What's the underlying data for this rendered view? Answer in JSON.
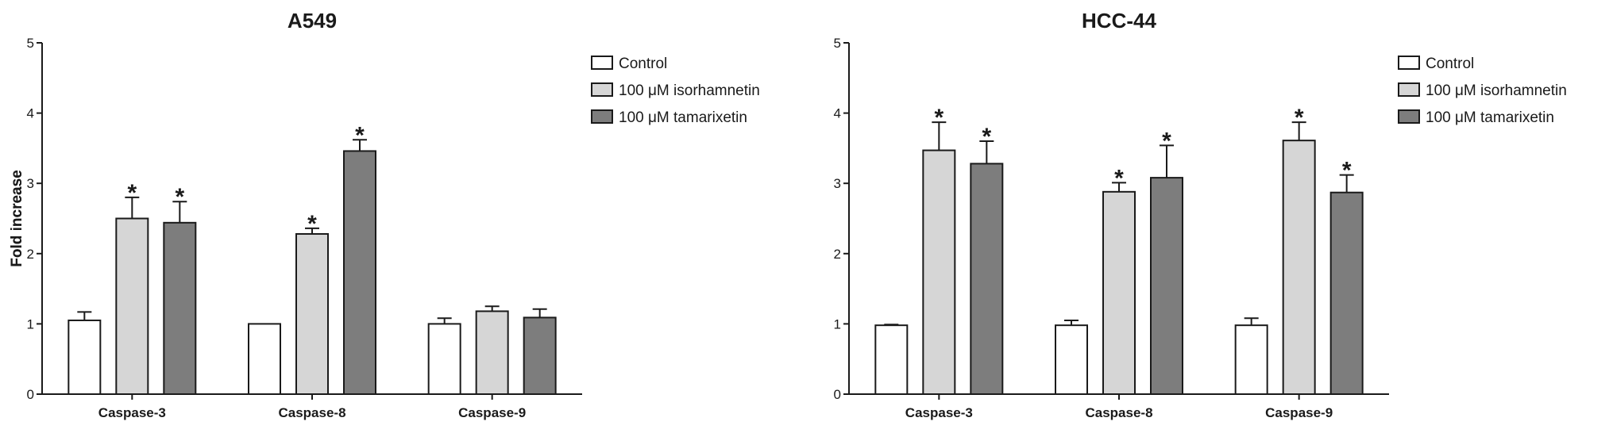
{
  "chart_data": [
    {
      "type": "bar",
      "title": "A549",
      "ylabel": "Fold increase",
      "xlabel": "",
      "ylim": [
        0,
        5
      ],
      "yticks": [
        "0",
        "1",
        "2",
        "3",
        "4",
        "5"
      ],
      "categories": [
        "Caspase-3",
        "Caspase-8",
        "Caspase-9"
      ],
      "legend_position": "right",
      "series": [
        {
          "name": "Control",
          "values": [
            1.05,
            1.0,
            1.0
          ],
          "errors": [
            0.12,
            0.0,
            0.08
          ],
          "significant": [
            false,
            false,
            false
          ],
          "color": "#ffffff"
        },
        {
          "name": "100 μM isorhamnetin",
          "values": [
            2.5,
            2.28,
            1.18
          ],
          "errors": [
            0.3,
            0.08,
            0.07
          ],
          "significant": [
            true,
            true,
            false
          ],
          "color": "#d6d6d6"
        },
        {
          "name": "100 μM tamarixetin",
          "values": [
            2.44,
            3.46,
            1.09
          ],
          "errors": [
            0.3,
            0.16,
            0.12
          ],
          "significant": [
            true,
            true,
            false
          ],
          "color": "#7d7d7d"
        }
      ],
      "significance_marker": "*"
    },
    {
      "type": "bar",
      "title": "HCC-44",
      "ylabel": "Fold increase",
      "xlabel": "",
      "ylim": [
        0,
        5
      ],
      "yticks": [
        "0",
        "1",
        "2",
        "3",
        "4",
        "5"
      ],
      "categories": [
        "Caspase-3",
        "Caspase-8",
        "Caspase-9"
      ],
      "legend_position": "right",
      "series": [
        {
          "name": "Control",
          "values": [
            0.98,
            0.98,
            0.98
          ],
          "errors": [
            0.01,
            0.07,
            0.1
          ],
          "significant": [
            false,
            false,
            false
          ],
          "color": "#ffffff"
        },
        {
          "name": "100 μM isorhamnetin",
          "values": [
            3.47,
            2.88,
            3.61
          ],
          "errors": [
            0.4,
            0.13,
            0.26
          ],
          "significant": [
            true,
            true,
            true
          ],
          "color": "#d6d6d6"
        },
        {
          "name": "100 μM tamarixetin",
          "values": [
            3.28,
            3.08,
            2.87
          ],
          "errors": [
            0.32,
            0.46,
            0.25
          ],
          "significant": [
            true,
            true,
            true
          ],
          "color": "#7d7d7d"
        }
      ],
      "significance_marker": "*"
    }
  ]
}
